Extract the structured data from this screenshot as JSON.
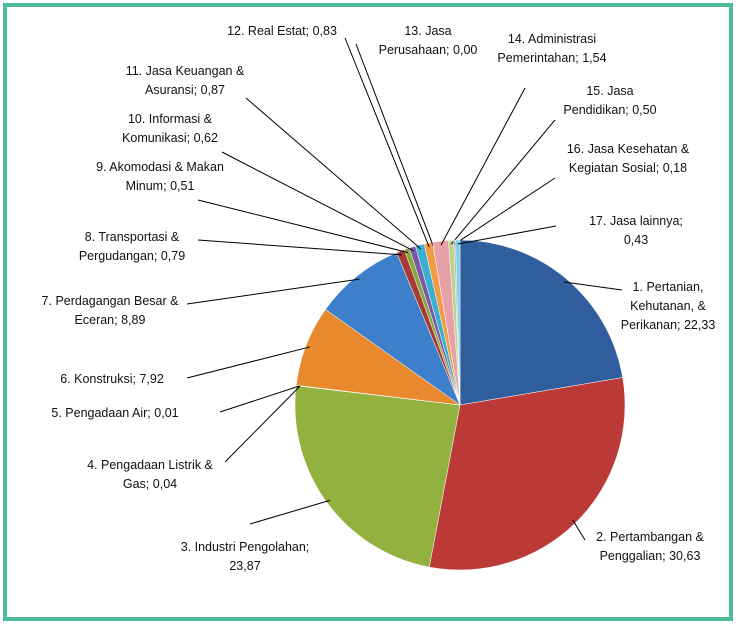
{
  "chart_data": {
    "type": "pie",
    "categories": [
      "1. Pertanian, Kehutanan, & Perikanan;",
      "2. Pertambangan & Penggalian;",
      "3. Industri Pengolahan;",
      "4. Pengadaan Listrik & Gas;",
      "5. Pengadaan Air;",
      "6. Konstruksi;",
      "7. Perdagangan Besar & Eceran;",
      "8. Transportasi & Pergudangan;",
      "9. Akomodasi & Makan Minum;",
      "10. Informasi & Komunikasi;",
      "11. Jasa Keuangan & Asuransi;",
      "12. Real Estat;",
      "13. Jasa Perusahaan;",
      "14. Administrasi Pemerintahan;",
      "15. Jasa Pendidikan;",
      "16. Jasa Kesehatan & Kegiatan Sosial;",
      "17. Jasa lainnya;"
    ],
    "values": [
      22.33,
      30.63,
      23.87,
      0.04,
      0.01,
      7.92,
      8.89,
      0.79,
      0.51,
      0.62,
      0.87,
      0.83,
      0.0,
      1.54,
      0.5,
      0.18,
      0.43
    ],
    "value_labels": [
      "22,33",
      "30,63",
      "23,87",
      "0,04",
      "0,01",
      "7,92",
      "8,89",
      "0,79",
      "0,51",
      "0,62",
      "0,87",
      "0,83",
      "0,00",
      "1,54",
      "0,50",
      "0,18",
      "0,43"
    ],
    "colors": [
      "#2f5d9e",
      "#bb3a38",
      "#93b13f",
      "#6f4f98",
      "#2fa0b8",
      "#e8892d",
      "#3e7fcc",
      "#a83a34",
      "#86a83a",
      "#7a5aa6",
      "#39b0cf",
      "#f29a44",
      "#8fb3e0",
      "#e6a0a8",
      "#b9d38a",
      "#b8a8d4",
      "#7fcfe0"
    ]
  }
}
